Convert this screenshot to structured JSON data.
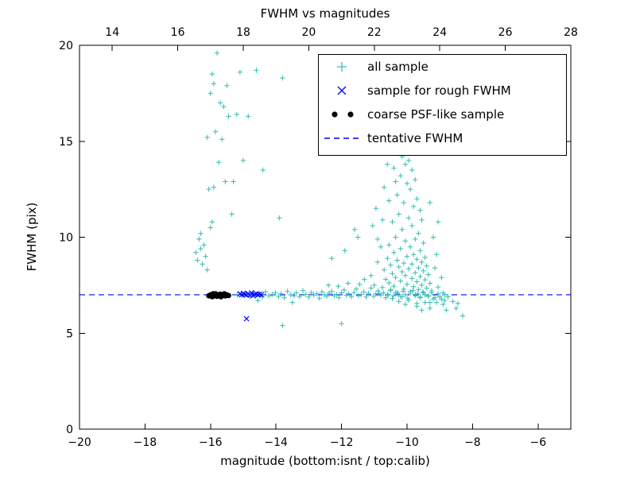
{
  "chart_data": {
    "type": "scatter",
    "title": "FWHM vs magnitudes",
    "xlabel": "magnitude (bottom:isnt / top:calib)",
    "ylabel": "FWHM (pix)",
    "x_range": [
      -20,
      -5
    ],
    "y_range": [
      0,
      20
    ],
    "top_x_range": [
      13,
      28
    ],
    "x_ticks": [
      -20,
      -18,
      -16,
      -14,
      -12,
      -10,
      -8,
      -6
    ],
    "top_x_ticks": [
      14,
      16,
      18,
      20,
      22,
      24,
      26,
      28
    ],
    "y_ticks": [
      0,
      5,
      10,
      15,
      20
    ],
    "grid": false,
    "legend_position": "upper right",
    "tentative_fwhm": 7.0,
    "legend": [
      {
        "label": "all sample",
        "marker": "plus",
        "color": "#35bdb2"
      },
      {
        "label": "sample for rough FWHM",
        "marker": "x",
        "color": "#0000ff"
      },
      {
        "label": "coarse PSF-like sample",
        "marker": "dot",
        "color": "#000000"
      },
      {
        "label": "tentative FWHM",
        "marker": "dashed-line",
        "color": "#0000ff"
      }
    ],
    "series": [
      {
        "name": "all sample",
        "marker": "plus",
        "color": "#35bdb2",
        "points": [
          [
            -16.45,
            9.2
          ],
          [
            -16.4,
            8.8
          ],
          [
            -16.35,
            9.9
          ],
          [
            -16.3,
            9.4
          ],
          [
            -16.3,
            10.2
          ],
          [
            -16.25,
            8.6
          ],
          [
            -16.2,
            9.6
          ],
          [
            -16.15,
            9.0
          ],
          [
            -16.1,
            8.3
          ],
          [
            -16.1,
            15.2
          ],
          [
            -16.05,
            12.5
          ],
          [
            -16.0,
            10.5
          ],
          [
            -16.0,
            17.5
          ],
          [
            -15.95,
            10.8
          ],
          [
            -15.95,
            18.5
          ],
          [
            -15.9,
            12.6
          ],
          [
            -15.9,
            18.0
          ],
          [
            -15.85,
            15.5
          ],
          [
            -15.8,
            19.6
          ],
          [
            -15.75,
            13.9
          ],
          [
            -15.7,
            17.0
          ],
          [
            -15.65,
            15.1
          ],
          [
            -15.6,
            16.8
          ],
          [
            -15.55,
            12.9
          ],
          [
            -15.5,
            17.9
          ],
          [
            -15.45,
            16.3
          ],
          [
            -15.35,
            11.2
          ],
          [
            -15.3,
            12.9
          ],
          [
            -15.2,
            16.4
          ],
          [
            -15.1,
            18.6
          ],
          [
            -15.0,
            14.0
          ],
          [
            -14.85,
            16.3
          ],
          [
            -14.6,
            18.7
          ],
          [
            -14.4,
            13.5
          ],
          [
            -13.8,
            18.3
          ],
          [
            -13.9,
            11.0
          ],
          [
            -15.18,
            7.02
          ],
          [
            -15.05,
            6.95
          ],
          [
            -14.92,
            7.08
          ],
          [
            -14.8,
            6.9
          ],
          [
            -14.7,
            7.12
          ],
          [
            -14.62,
            6.98
          ],
          [
            -14.55,
            6.7
          ],
          [
            -14.5,
            7.05
          ],
          [
            -14.42,
            6.88
          ],
          [
            -14.32,
            7.15
          ],
          [
            -14.22,
            6.95
          ],
          [
            -14.12,
            7.02
          ],
          [
            -14.02,
            7.1
          ],
          [
            -13.92,
            6.92
          ],
          [
            -13.85,
            7.05
          ],
          [
            -13.8,
            5.4
          ],
          [
            -13.75,
            6.85
          ],
          [
            -13.65,
            7.18
          ],
          [
            -13.55,
            7.0
          ],
          [
            -13.5,
            6.6
          ],
          [
            -13.45,
            6.95
          ],
          [
            -13.38,
            7.1
          ],
          [
            -13.28,
            6.9
          ],
          [
            -13.18,
            7.22
          ],
          [
            -13.1,
            7.02
          ],
          [
            -13.0,
            6.88
          ],
          [
            -12.92,
            7.12
          ],
          [
            -12.85,
            6.98
          ],
          [
            -12.75,
            7.05
          ],
          [
            -12.68,
            6.82
          ],
          [
            -12.6,
            7.15
          ],
          [
            -12.52,
            7.0
          ],
          [
            -12.45,
            6.92
          ],
          [
            -12.4,
            7.5
          ],
          [
            -12.38,
            7.08
          ],
          [
            -12.3,
            7.18
          ],
          [
            -12.22,
            6.95
          ],
          [
            -12.15,
            7.02
          ],
          [
            -12.1,
            7.45
          ],
          [
            -12.08,
            6.85
          ],
          [
            -12.0,
            5.5
          ],
          [
            -12.0,
            7.1
          ],
          [
            -11.92,
            7.25
          ],
          [
            -11.85,
            6.98
          ],
          [
            -11.8,
            7.6
          ],
          [
            -11.78,
            7.05
          ],
          [
            -11.7,
            6.9
          ],
          [
            -11.62,
            7.12
          ],
          [
            -11.55,
            7.3
          ],
          [
            -11.48,
            6.95
          ],
          [
            -11.45,
            7.55
          ],
          [
            -11.4,
            7.02
          ],
          [
            -11.32,
            7.15
          ],
          [
            -11.3,
            7.8
          ],
          [
            -11.25,
            6.88
          ],
          [
            -11.18,
            7.08
          ],
          [
            -11.1,
            7.35
          ],
          [
            -11.02,
            6.92
          ],
          [
            -10.95,
            7.05
          ],
          [
            -10.88,
            7.2
          ],
          [
            -10.8,
            6.98
          ],
          [
            -10.72,
            7.1
          ],
          [
            -10.65,
            6.85
          ],
          [
            -10.58,
            7.02
          ],
          [
            -10.5,
            7.28
          ],
          [
            -10.42,
            6.95
          ],
          [
            -10.35,
            7.12
          ],
          [
            -10.28,
            7.05
          ],
          [
            -10.2,
            6.9
          ],
          [
            -10.12,
            7.18
          ],
          [
            -10.05,
            7.0
          ],
          [
            -9.98,
            6.82
          ],
          [
            -9.9,
            7.08
          ],
          [
            -9.82,
            7.22
          ],
          [
            -9.75,
            6.95
          ],
          [
            -9.68,
            7.05
          ],
          [
            -9.6,
            6.88
          ],
          [
            -9.52,
            7.15
          ],
          [
            -9.45,
            7.0
          ],
          [
            -9.35,
            6.92
          ],
          [
            -9.25,
            7.1
          ],
          [
            -9.15,
            6.85
          ],
          [
            -9.05,
            7.05
          ],
          [
            -8.95,
            6.78
          ],
          [
            -8.85,
            7.0
          ],
          [
            -8.75,
            6.9
          ],
          [
            -8.6,
            6.65
          ],
          [
            -8.45,
            6.55
          ],
          [
            -8.3,
            5.9
          ],
          [
            -8.5,
            6.3
          ],
          [
            -8.9,
            6.5
          ],
          [
            -9.3,
            6.6
          ],
          [
            -9.7,
            6.55
          ],
          [
            -12.3,
            8.9
          ],
          [
            -11.9,
            9.3
          ],
          [
            -11.6,
            10.4
          ],
          [
            -11.5,
            10.0
          ],
          [
            -10.15,
            14.2
          ],
          [
            -9.95,
            14.0
          ],
          [
            -10.05,
            13.8
          ],
          [
            -9.85,
            13.5
          ],
          [
            -10.2,
            13.2
          ],
          [
            -9.75,
            13.0
          ],
          [
            -10.0,
            12.8
          ],
          [
            -9.9,
            12.5
          ],
          [
            -10.3,
            12.2
          ],
          [
            -9.7,
            12.0
          ],
          [
            -10.1,
            11.8
          ],
          [
            -9.8,
            11.6
          ],
          [
            -9.6,
            11.4
          ],
          [
            -10.25,
            11.2
          ],
          [
            -9.95,
            11.0
          ],
          [
            -10.45,
            10.8
          ],
          [
            -9.55,
            10.9
          ],
          [
            -9.85,
            10.6
          ],
          [
            -10.15,
            10.4
          ],
          [
            -9.65,
            10.2
          ],
          [
            -10.35,
            10.0
          ],
          [
            -9.75,
            9.9
          ],
          [
            -10.05,
            9.8
          ],
          [
            -9.5,
            9.7
          ],
          [
            -10.55,
            9.6
          ],
          [
            -9.9,
            9.5
          ],
          [
            -10.2,
            9.4
          ],
          [
            -9.6,
            9.3
          ],
          [
            -10.4,
            9.2
          ],
          [
            -9.8,
            9.1
          ],
          [
            -10.0,
            9.0
          ],
          [
            -9.45,
            8.95
          ],
          [
            -10.6,
            8.9
          ],
          [
            -9.7,
            8.85
          ],
          [
            -10.3,
            8.8
          ],
          [
            -9.55,
            8.7
          ],
          [
            -10.1,
            8.65
          ],
          [
            -9.85,
            8.6
          ],
          [
            -10.5,
            8.55
          ],
          [
            -9.4,
            8.5
          ],
          [
            -10.25,
            8.45
          ],
          [
            -9.65,
            8.4
          ],
          [
            -9.95,
            8.35
          ],
          [
            -10.7,
            8.3
          ],
          [
            -9.5,
            8.25
          ],
          [
            -10.15,
            8.2
          ],
          [
            -9.75,
            8.15
          ],
          [
            -10.45,
            8.1
          ],
          [
            -9.35,
            8.05
          ],
          [
            -10.05,
            8.0
          ],
          [
            -9.6,
            7.95
          ],
          [
            -10.35,
            7.9
          ],
          [
            -9.85,
            7.85
          ],
          [
            -10.65,
            7.8
          ],
          [
            -9.45,
            7.78
          ],
          [
            -10.2,
            7.72
          ],
          [
            -9.7,
            7.68
          ],
          [
            -10.55,
            7.62
          ],
          [
            -9.3,
            7.6
          ],
          [
            -10.0,
            7.55
          ],
          [
            -9.55,
            7.5
          ],
          [
            -10.4,
            7.45
          ],
          [
            -9.8,
            7.42
          ],
          [
            -10.75,
            7.38
          ],
          [
            -9.4,
            7.35
          ],
          [
            -10.1,
            7.3
          ],
          [
            -9.65,
            7.28
          ],
          [
            -10.5,
            7.22
          ],
          [
            -9.25,
            7.2
          ],
          [
            -9.9,
            7.18
          ],
          [
            -10.3,
            7.12
          ],
          [
            -9.5,
            7.1
          ],
          [
            -10.85,
            7.05
          ],
          [
            -9.75,
            7.02
          ],
          [
            -10.6,
            6.98
          ],
          [
            -9.35,
            6.95
          ],
          [
            -10.15,
            6.9
          ],
          [
            -9.6,
            6.85
          ],
          [
            -10.45,
            6.8
          ],
          [
            -9.2,
            6.78
          ],
          [
            -9.95,
            6.72
          ],
          [
            -10.25,
            6.65
          ],
          [
            -9.45,
            6.6
          ],
          [
            -10.05,
            6.5
          ],
          [
            -9.7,
            6.4
          ],
          [
            -9.3,
            6.3
          ],
          [
            -9.55,
            6.2
          ],
          [
            -9.1,
            6.6
          ],
          [
            -9.0,
            6.9
          ],
          [
            -8.9,
            7.1
          ],
          [
            -8.85,
            6.7
          ],
          [
            -9.05,
            7.4
          ],
          [
            -8.95,
            7.9
          ],
          [
            -9.15,
            8.4
          ],
          [
            -9.1,
            9.1
          ],
          [
            -8.8,
            6.2
          ],
          [
            -11.0,
            7.5
          ],
          [
            -11.1,
            8.0
          ],
          [
            -10.9,
            8.7
          ],
          [
            -10.8,
            9.5
          ],
          [
            -11.05,
            10.6
          ],
          [
            -10.95,
            11.5
          ],
          [
            -10.7,
            12.6
          ],
          [
            -10.6,
            13.8
          ],
          [
            -10.4,
            13.6
          ],
          [
            -9.2,
            10.0
          ],
          [
            -9.05,
            10.8
          ],
          [
            -9.3,
            11.8
          ],
          [
            -10.9,
            9.9
          ],
          [
            -10.75,
            10.9
          ],
          [
            -10.55,
            11.9
          ],
          [
            -10.35,
            12.9
          ]
        ]
      },
      {
        "name": "sample for rough FWHM",
        "marker": "x",
        "color": "#0000ff",
        "points": [
          [
            -15.1,
            7.05
          ],
          [
            -15.05,
            7.0
          ],
          [
            -15.0,
            7.08
          ],
          [
            -14.95,
            7.02
          ],
          [
            -14.9,
            6.98
          ],
          [
            -14.85,
            7.05
          ],
          [
            -14.8,
            7.0
          ],
          [
            -14.75,
            7.1
          ],
          [
            -14.7,
            6.95
          ],
          [
            -14.65,
            7.02
          ],
          [
            -14.6,
            7.06
          ],
          [
            -14.55,
            6.99
          ],
          [
            -14.5,
            7.04
          ],
          [
            -14.45,
            7.0
          ],
          [
            -14.9,
            5.75
          ]
        ]
      },
      {
        "name": "coarse PSF-like sample",
        "marker": "dot",
        "color": "#000000",
        "points": [
          [
            -16.05,
            6.95
          ],
          [
            -16.0,
            7.0
          ],
          [
            -15.95,
            6.9
          ],
          [
            -15.92,
            7.05
          ],
          [
            -15.9,
            7.02
          ],
          [
            -15.88,
            6.95
          ],
          [
            -15.85,
            7.05
          ],
          [
            -15.8,
            6.92
          ],
          [
            -15.78,
            7.0
          ],
          [
            -15.75,
            6.98
          ],
          [
            -15.7,
            7.03
          ],
          [
            -15.68,
            6.9
          ],
          [
            -15.65,
            6.97
          ],
          [
            -15.6,
            7.0
          ],
          [
            -15.58,
            7.05
          ],
          [
            -15.55,
            6.94
          ],
          [
            -15.5,
            7.0
          ],
          [
            -15.45,
            6.96
          ]
        ]
      }
    ]
  }
}
